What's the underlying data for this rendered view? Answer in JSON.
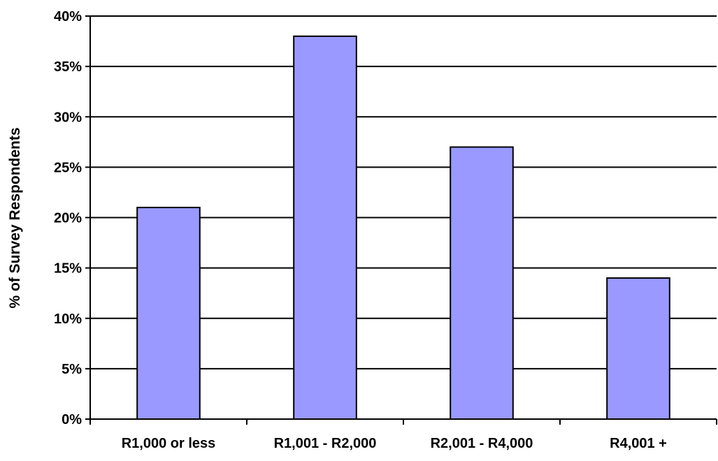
{
  "chart_data": {
    "type": "bar",
    "title": "",
    "xlabel": "",
    "ylabel": "% of Survey Respondents",
    "categories": [
      "R1,000 or less",
      "R1,001 - R2,000",
      "R2,001 - R4,000",
      "R4,001 +"
    ],
    "values": [
      21,
      38,
      27,
      14
    ],
    "value_unit": "%",
    "ylim": [
      0,
      40
    ],
    "ytick_step": 5,
    "ytick_labels": [
      "0%",
      "5%",
      "10%",
      "15%",
      "20%",
      "25%",
      "30%",
      "35%",
      "40%"
    ],
    "grid": true,
    "legend": "none",
    "colors": {
      "bar_fill": "#9999ff",
      "bar_stroke": "#000000",
      "grid": "#000000",
      "axis": "#000000"
    }
  }
}
